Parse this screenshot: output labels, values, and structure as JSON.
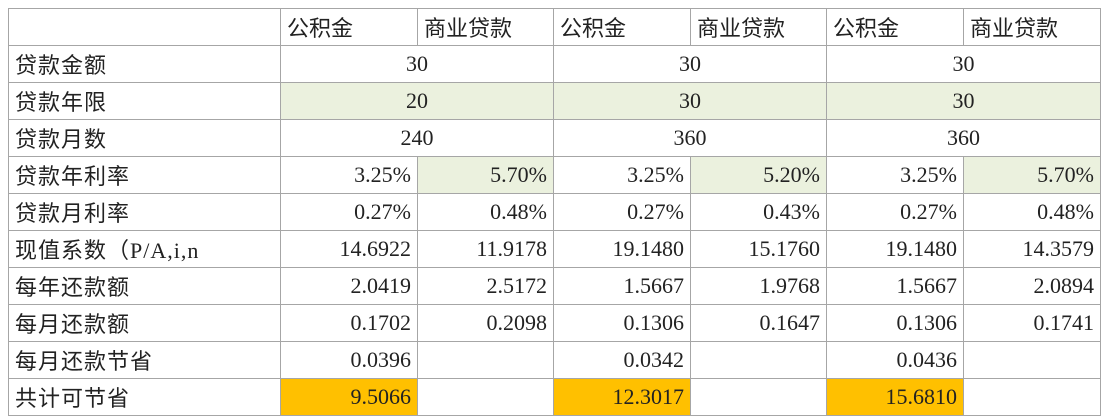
{
  "header": {
    "columns": [
      "公积金",
      "商业贷款",
      "公积金",
      "商业贷款",
      "公积金",
      "商业贷款"
    ]
  },
  "rows": [
    {
      "label": "贷款金额",
      "values": [
        "30",
        "30",
        "30"
      ]
    },
    {
      "label": "贷款年限",
      "values": [
        "20",
        "30",
        "30"
      ]
    },
    {
      "label": "贷款月数",
      "values": [
        "240",
        "360",
        "360"
      ]
    },
    {
      "label": "贷款年利率",
      "values": [
        "3.25%",
        "5.70%",
        "3.25%",
        "5.20%",
        "3.25%",
        "5.70%"
      ]
    },
    {
      "label": "贷款月利率",
      "values": [
        "0.27%",
        "0.48%",
        "0.27%",
        "0.43%",
        "0.27%",
        "0.48%"
      ]
    },
    {
      "label": "现值系数（P/A,i,n",
      "values": [
        "14.6922",
        "11.9178",
        "19.1480",
        "15.1760",
        "19.1480",
        "14.3579"
      ]
    },
    {
      "label": "每年还款额",
      "values": [
        "2.0419",
        "2.5172",
        "1.5667",
        "1.9768",
        "1.5667",
        "2.0894"
      ]
    },
    {
      "label": "每月还款额",
      "values": [
        "0.1702",
        "0.2098",
        "0.1306",
        "0.1647",
        "0.1306",
        "0.1741"
      ]
    },
    {
      "label": "每月还款节省",
      "values": [
        "0.0396",
        "0.0342",
        "0.0436"
      ]
    },
    {
      "label": "共计可节省",
      "values": [
        "9.5066",
        "12.3017",
        "15.6810"
      ]
    }
  ]
}
